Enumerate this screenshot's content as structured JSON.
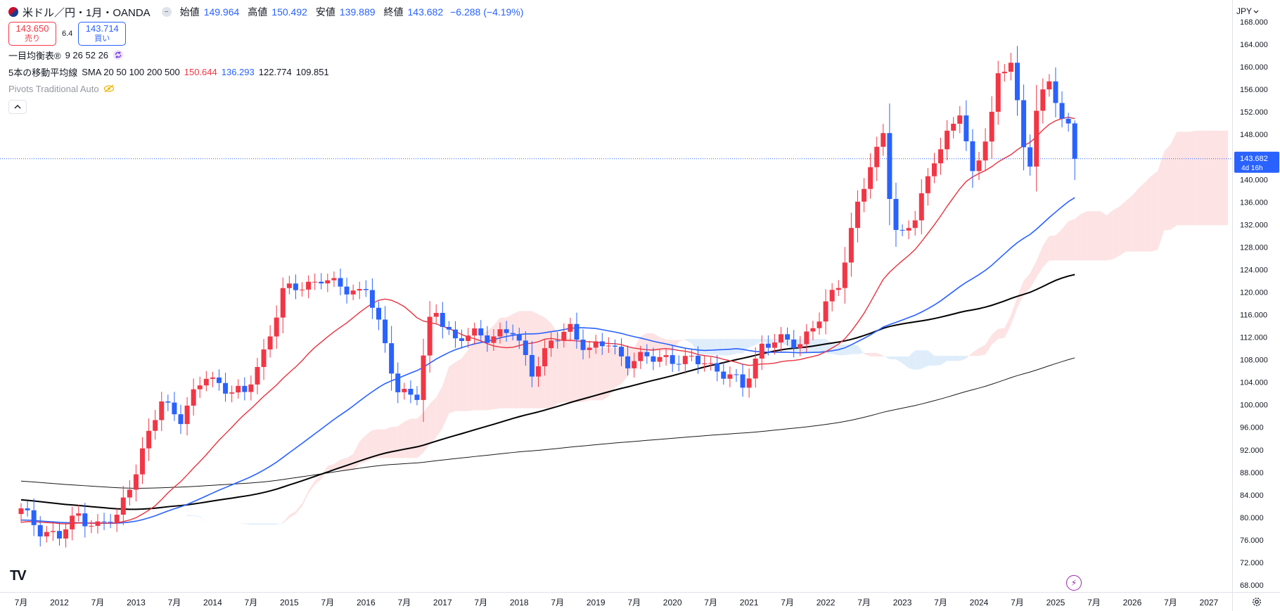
{
  "header": {
    "symbol_title": "米ドル／円・1月・OANDA",
    "open_label": "始値",
    "open_value": "149.964",
    "high_label": "高値",
    "high_value": "150.492",
    "low_label": "安値",
    "low_value": "139.889",
    "close_label": "終値",
    "close_value": "143.682",
    "change": "−6.288 (−4.19%)"
  },
  "quote": {
    "sell_price": "143.650",
    "sell_label": "売り",
    "spread": "6.4",
    "buy_price": "143.714",
    "buy_label": "買い"
  },
  "indicators": {
    "ichimoku_name": "一目均衡表®",
    "ichimoku_params": "9 26 52 26",
    "ma_name": "5本の移動平均線",
    "ma_params": "SMA 20 50 100 200 500",
    "ma_values": [
      "150.644",
      "136.293",
      "122.774",
      "109.851"
    ],
    "pivots_name": "Pivots Traditional Auto"
  },
  "currency": "JPY",
  "current_price_label": {
    "price": "143.682",
    "countdown": "4d 16h"
  },
  "logo": "TV",
  "colors": {
    "up": "#f23645",
    "down": "#2962ff",
    "sma20": "#e8333f",
    "sma50": "#2962ff",
    "sma100": "#000000",
    "sma200": "#1a1a1a",
    "cloud_bull": "#fde3e4",
    "cloud_bear": "#dfedfb"
  },
  "chart_data": {
    "type": "candlestick",
    "timeframe": "1M",
    "y_ticks": [
      "68.000",
      "72.000",
      "76.000",
      "80.000",
      "84.000",
      "88.000",
      "92.000",
      "96.000",
      "100.000",
      "104.000",
      "108.000",
      "112.000",
      "116.000",
      "120.000",
      "124.000",
      "128.000",
      "132.000",
      "136.000",
      "140.000",
      "144.000",
      "148.000",
      "152.000",
      "156.000",
      "160.000",
      "164.000",
      "168.000"
    ],
    "ylim": [
      66,
      170
    ],
    "x_labels": [
      "7月",
      "2012",
      "7月",
      "2013",
      "7月",
      "2014",
      "7月",
      "2015",
      "7月",
      "2016",
      "7月",
      "2017",
      "7月",
      "2018",
      "7月",
      "2019",
      "7月",
      "2020",
      "7月",
      "2021",
      "7月",
      "2022",
      "7月",
      "2023",
      "7月",
      "2024",
      "7月",
      "2025",
      "7月",
      "2026",
      "7月",
      "2027"
    ],
    "x_label_start": "2011-07",
    "series_close_anchors": [
      [
        "2011-07",
        81.0
      ],
      [
        "2011-10",
        78.0
      ],
      [
        "2012-01",
        76.5
      ],
      [
        "2012-04",
        80.5
      ],
      [
        "2012-07",
        78.5
      ],
      [
        "2012-10",
        79.8
      ],
      [
        "2012-12",
        86.0
      ],
      [
        "2013-03",
        94.5
      ],
      [
        "2013-05",
        100.5
      ],
      [
        "2013-08",
        98.0
      ],
      [
        "2013-12",
        105.0
      ],
      [
        "2014-06",
        101.5
      ],
      [
        "2014-09",
        109.5
      ],
      [
        "2014-12",
        119.8
      ],
      [
        "2015-06",
        122.5
      ],
      [
        "2015-08",
        121.0
      ],
      [
        "2015-12",
        120.3
      ],
      [
        "2016-01",
        121.0
      ],
      [
        "2016-06",
        103.0
      ],
      [
        "2016-09",
        101.3
      ],
      [
        "2016-11",
        114.5
      ],
      [
        "2016-12",
        117.0
      ],
      [
        "2017-03",
        111.3
      ],
      [
        "2017-06",
        112.4
      ],
      [
        "2017-09",
        112.5
      ],
      [
        "2017-12",
        112.7
      ],
      [
        "2018-03",
        106.3
      ],
      [
        "2018-06",
        110.7
      ],
      [
        "2018-09",
        113.7
      ],
      [
        "2018-12",
        109.7
      ],
      [
        "2019-03",
        110.8
      ],
      [
        "2019-06",
        107.8
      ],
      [
        "2019-09",
        108.1
      ],
      [
        "2019-12",
        108.6
      ],
      [
        "2020-03",
        107.5
      ],
      [
        "2020-06",
        107.9
      ],
      [
        "2020-09",
        105.5
      ],
      [
        "2020-12",
        103.2
      ],
      [
        "2021-03",
        110.7
      ],
      [
        "2021-06",
        111.1
      ],
      [
        "2021-09",
        111.3
      ],
      [
        "2021-12",
        115.1
      ],
      [
        "2022-03",
        121.7
      ],
      [
        "2022-06",
        135.7
      ],
      [
        "2022-09",
        144.7
      ],
      [
        "2022-10",
        148.7
      ],
      [
        "2022-11",
        138.0
      ],
      [
        "2022-12",
        131.1
      ],
      [
        "2023-01",
        130.1
      ],
      [
        "2023-03",
        132.8
      ],
      [
        "2023-06",
        144.3
      ],
      [
        "2023-09",
        149.4
      ],
      [
        "2023-10",
        151.7
      ],
      [
        "2023-12",
        141.0
      ],
      [
        "2024-03",
        151.3
      ],
      [
        "2024-04",
        157.8
      ],
      [
        "2024-06",
        160.9
      ],
      [
        "2024-08",
        146.2
      ],
      [
        "2024-09",
        143.6
      ],
      [
        "2024-10",
        152.0
      ],
      [
        "2024-12",
        157.2
      ],
      [
        "2025-01",
        154.2
      ],
      [
        "2025-02",
        150.6
      ],
      [
        "2025-03",
        149.9
      ],
      [
        "2025-04",
        143.7
      ]
    ],
    "last_candle": {
      "open": 149.964,
      "high": 150.492,
      "low": 139.889,
      "close": 143.682
    }
  }
}
